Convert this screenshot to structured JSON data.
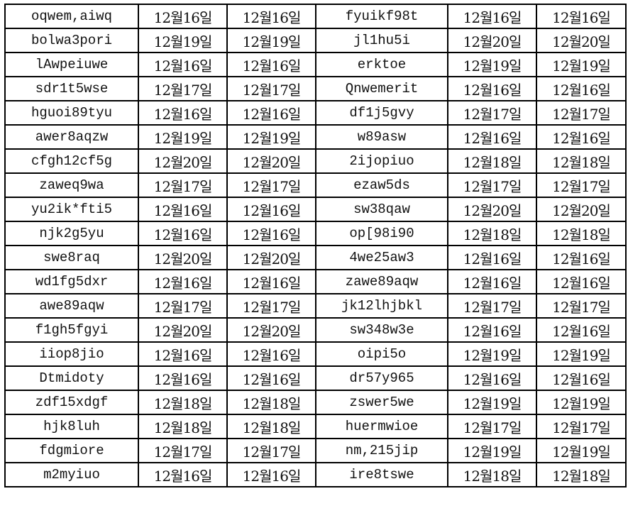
{
  "sheet": {
    "rows": [
      [
        "oqwem,aiwq",
        "12월16일",
        "12월16일",
        "fyuikf98t",
        "12월16일",
        "12월16일"
      ],
      [
        "bolwa3pori",
        "12월19일",
        "12월19일",
        "jl1hu5i",
        "12월20일",
        "12월20일"
      ],
      [
        "lAwpeiuwe",
        "12월16일",
        "12월16일",
        "erktoe",
        "12월19일",
        "12월19일"
      ],
      [
        "sdr1t5wse",
        "12월17일",
        "12월17일",
        "Qnwemerit",
        "12월16일",
        "12월16일"
      ],
      [
        "hguoi89tyu",
        "12월16일",
        "12월16일",
        "df1j5gvy",
        "12월17일",
        "12월17일"
      ],
      [
        "awer8aqzw",
        "12월19일",
        "12월19일",
        "w89asw",
        "12월16일",
        "12월16일"
      ],
      [
        "cfgh12cf5g",
        "12월20일",
        "12월20일",
        "2ijopiuo",
        "12월18일",
        "12월18일"
      ],
      [
        "zaweq9wa",
        "12월17일",
        "12월17일",
        "ezaw5ds",
        "12월17일",
        "12월17일"
      ],
      [
        "yu2ik*fti5",
        "12월16일",
        "12월16일",
        "sw38qaw",
        "12월20일",
        "12월20일"
      ],
      [
        "njk2g5yu",
        "12월16일",
        "12월16일",
        "op[98i90",
        "12월18일",
        "12월18일"
      ],
      [
        "swe8raq",
        "12월20일",
        "12월20일",
        "4we25aw3",
        "12월16일",
        "12월16일"
      ],
      [
        "wd1fg5dxr",
        "12월16일",
        "12월16일",
        "zawe89aqw",
        "12월16일",
        "12월16일"
      ],
      [
        "awe89aqw",
        "12월17일",
        "12월17일",
        "jk12lhjbkl",
        "12월17일",
        "12월17일"
      ],
      [
        "f1gh5fgyi",
        "12월20일",
        "12월20일",
        "sw348w3e",
        "12월16일",
        "12월16일"
      ],
      [
        "iiop8jio",
        "12월16일",
        "12월16일",
        "oipi5o",
        "12월19일",
        "12월19일"
      ],
      [
        "Dtmidoty",
        "12월16일",
        "12월16일",
        "dr57y965",
        "12월16일",
        "12월16일"
      ],
      [
        "zdf15xdgf",
        "12월18일",
        "12월18일",
        "zswer5we",
        "12월19일",
        "12월19일"
      ],
      [
        "hjk8luh",
        "12월18일",
        "12월18일",
        "huermwioe",
        "12월17일",
        "12월17일"
      ],
      [
        "fdgmiore",
        "12월17일",
        "12월17일",
        "nm,215jip",
        "12월19일",
        "12월19일"
      ],
      [
        "m2myiuo",
        "12월16일",
        "12월16일",
        "ire8tswe",
        "12월18일",
        "12월18일"
      ]
    ]
  }
}
